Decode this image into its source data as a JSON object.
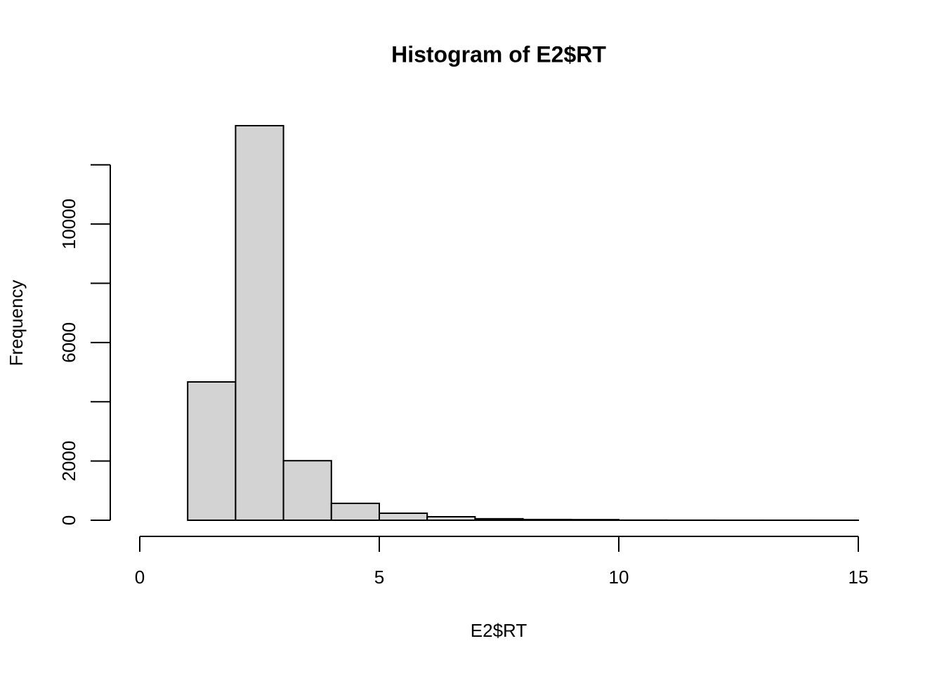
{
  "chart_data": {
    "type": "histogram",
    "title": "Histogram of E2$RT",
    "xlabel": "E2$RT",
    "ylabel": "Frequency",
    "bins": [
      0,
      1,
      2,
      3,
      4,
      5,
      6,
      7,
      8,
      9,
      10,
      11,
      12,
      13,
      14,
      15
    ],
    "values": [
      0,
      4670,
      13320,
      2010,
      570,
      237,
      118,
      50,
      25,
      20,
      4,
      2,
      1,
      1,
      1
    ],
    "color": "#d3d3d3",
    "xlim": [
      0,
      15
    ],
    "xticks": [
      0,
      5,
      10,
      15
    ],
    "ylim": [
      0,
      13320
    ],
    "yticks": [
      0,
      2000,
      6000,
      10000
    ],
    "yminor_ticks": [
      4000,
      8000,
      12000
    ],
    "grid": false
  }
}
